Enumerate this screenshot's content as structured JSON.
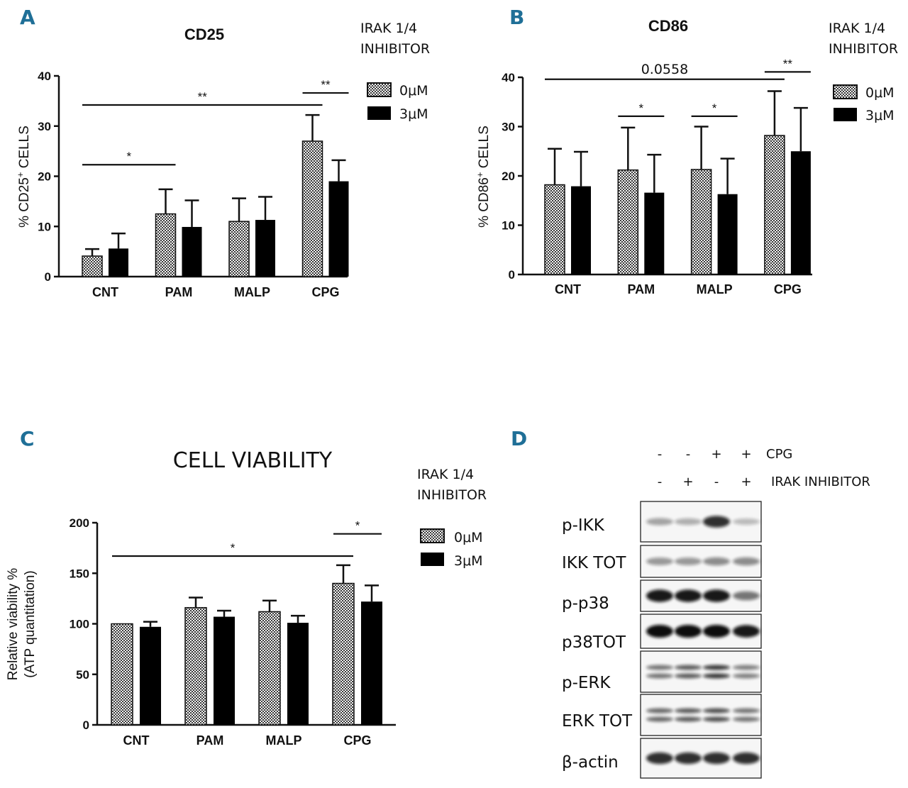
{
  "legend": {
    "title_line1": "IRAK 1/4",
    "title_line2": "INHIBITOR",
    "series": [
      {
        "name": "0μM",
        "pattern": "checker"
      },
      {
        "name": "3μM",
        "pattern": "solid"
      }
    ]
  },
  "colors": {
    "panel_letter": "#1f6f97",
    "bar_solid": "#000000",
    "checker_dark": "#3a3a3a",
    "checker_light": "#f2f2f2"
  },
  "chart_data": [
    {
      "panel": "A",
      "type": "bar",
      "title": "CD25",
      "ylabel_main": "% CD25",
      "ylabel_sup": "+",
      "ylabel_tail": " CELLS",
      "categories": [
        "CNT",
        "PAM",
        "MALP",
        "CPG"
      ],
      "ylim": [
        0,
        40
      ],
      "yticks": [
        "0",
        "10",
        "20",
        "30",
        "40"
      ],
      "series": [
        {
          "name": "0μM",
          "values": [
            4.1,
            12.5,
            11.0,
            27.0
          ],
          "errors": [
            1.4,
            4.9,
            4.6,
            5.2
          ]
        },
        {
          "name": "3μM",
          "values": [
            5.6,
            9.9,
            11.3,
            19.0
          ],
          "errors": [
            3.0,
            5.3,
            4.6,
            4.2
          ]
        }
      ],
      "annotations": [
        {
          "label": "**",
          "from": [
            0,
            0
          ],
          "to": [
            3,
            0
          ],
          "y": 34.2
        },
        {
          "label": "**",
          "from": [
            3,
            0
          ],
          "to": [
            3,
            1
          ],
          "y": 36.6
        },
        {
          "label": "*",
          "from": [
            0,
            0
          ],
          "to": [
            1,
            0
          ],
          "y": 22.3
        }
      ]
    },
    {
      "panel": "B",
      "type": "bar",
      "title": "CD86",
      "ylabel_main": "% CD86",
      "ylabel_sup": "+",
      "ylabel_tail": " CELLS",
      "categories": [
        "CNT",
        "PAM",
        "MALP",
        "CPG"
      ],
      "ylim": [
        0,
        40
      ],
      "yticks": [
        "0",
        "10",
        "20",
        "30",
        "40"
      ],
      "series": [
        {
          "name": "0μM",
          "values": [
            18.2,
            21.2,
            21.3,
            28.2
          ],
          "errors": [
            7.3,
            8.6,
            8.7,
            9.0
          ]
        },
        {
          "name": "3μM",
          "values": [
            17.9,
            16.6,
            16.3,
            25.0
          ],
          "errors": [
            7.0,
            7.7,
            7.2,
            8.8
          ]
        }
      ],
      "annotations": [
        {
          "label": "0.0558",
          "from": [
            0,
            0
          ],
          "to": [
            3,
            0
          ],
          "y": 39.6
        },
        {
          "label": "**",
          "from": [
            3,
            0
          ],
          "to": [
            3,
            1
          ],
          "y": 41.1
        },
        {
          "label": "*",
          "from": [
            1,
            0
          ],
          "to": [
            1,
            1
          ],
          "y": 32.1
        },
        {
          "label": "*",
          "from": [
            2,
            0
          ],
          "to": [
            2,
            1
          ],
          "y": 32.1
        }
      ]
    },
    {
      "panel": "C",
      "type": "bar",
      "title": "CELL VIABILITY",
      "ylabel_line1": "Relative viability %",
      "ylabel_line2": "(ATP quantitation)",
      "categories": [
        "CNT",
        "PAM",
        "MALP",
        "CPG"
      ],
      "ylim": [
        0,
        200
      ],
      "yticks": [
        "0",
        "50",
        "100",
        "150",
        "200"
      ],
      "series": [
        {
          "name": "0μM",
          "values": [
            100,
            116,
            112,
            140
          ],
          "errors": [
            0,
            10,
            11,
            18
          ]
        },
        {
          "name": "3μM",
          "values": [
            97,
            107,
            101,
            122
          ],
          "errors": [
            5,
            6,
            7,
            16
          ]
        }
      ],
      "annotations": [
        {
          "label": "*",
          "from": [
            0,
            0
          ],
          "to": [
            3,
            0
          ],
          "y": 167
        },
        {
          "label": "*",
          "from": [
            3,
            0
          ],
          "to": [
            3,
            1
          ],
          "y": 189
        }
      ]
    }
  ],
  "blot": {
    "panel": "D",
    "conditions": [
      {
        "label": "CPG",
        "values": [
          "-",
          "-",
          "+",
          "+"
        ]
      },
      {
        "label": "IRAK INHIBITOR",
        "values": [
          "-",
          "+",
          "-",
          "+"
        ]
      }
    ],
    "rows": [
      {
        "label": "p-IKK",
        "intensities": [
          0.35,
          0.3,
          0.85,
          0.25
        ],
        "doublet": false
      },
      {
        "label": "IKK TOT",
        "intensities": [
          0.4,
          0.4,
          0.45,
          0.45
        ],
        "doublet": false
      },
      {
        "label": "p-p38",
        "intensities": [
          0.95,
          0.95,
          0.95,
          0.55
        ],
        "doublet": false
      },
      {
        "label": "p38TOT",
        "intensities": [
          1.0,
          1.0,
          1.0,
          0.95
        ],
        "doublet": false
      },
      {
        "label": "p-ERK",
        "intensities": [
          0.55,
          0.65,
          0.8,
          0.5
        ],
        "doublet": true
      },
      {
        "label": "ERK TOT",
        "intensities": [
          0.6,
          0.65,
          0.7,
          0.55
        ],
        "doublet": true
      },
      {
        "label": "β-actin",
        "intensities": [
          0.85,
          0.85,
          0.85,
          0.85
        ],
        "doublet": false
      }
    ]
  }
}
